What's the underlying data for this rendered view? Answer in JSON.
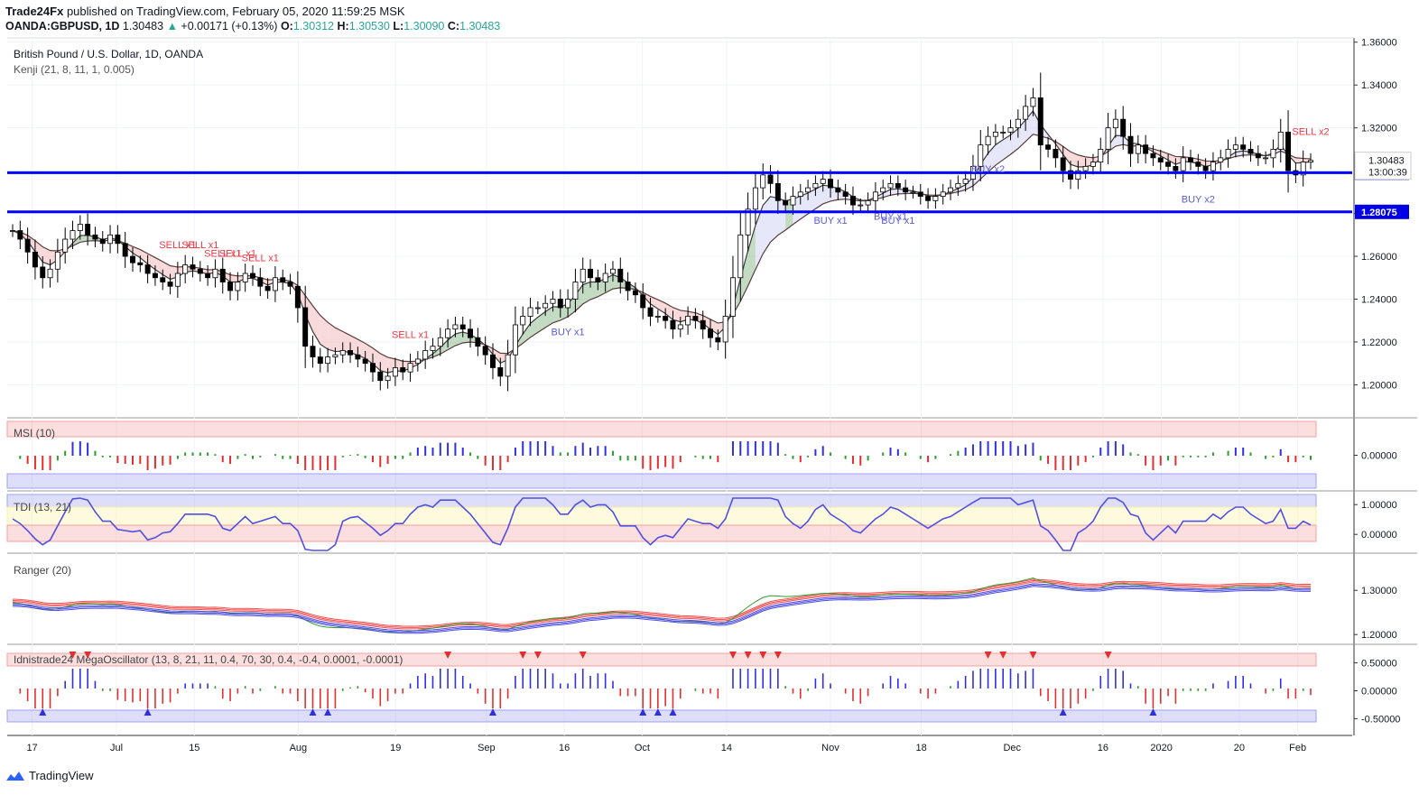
{
  "header": {
    "publisher": "Trade24Fx",
    "published_text": "published on TradingView.com, February 05, 2020 11:59:25 MSK",
    "symbol": "OANDA:GBPUSD, 1D",
    "last": "1.30483",
    "change": "+0.00171 (+0.13%)",
    "o_label": "O:",
    "o": "1.30312",
    "h_label": "H:",
    "h": "1.30530",
    "l_label": "L:",
    "l": "1.30090",
    "c_label": "C:",
    "c": "1.30483"
  },
  "panes": {
    "main": {
      "title": "British Pound / U.S. Dollar, 1D, OANDA",
      "indicator": "Kenji (21, 8, 11, 1, 0.005)"
    },
    "msi": {
      "title": "MSI (10)"
    },
    "tdi": {
      "title": "TDI (13, 21)"
    },
    "ranger": {
      "title": "Ranger (20)"
    },
    "mega": {
      "title": "Idnistrade24 MegaOscillator (13, 8, 21, 11, 0.4, 70, 30, 0.4, -0.4, 0.0001, -0.0001)"
    }
  },
  "footer": {
    "brand": "TradingView"
  },
  "colors": {
    "bull": "#ffffff",
    "bear": "#000000",
    "level": "#0000ff",
    "sell": "#f23645",
    "buy": "#5b5bd6",
    "green_band": "#7bb07b",
    "red_band": "#f4b6b6",
    "blue_band": "#c9c9f4"
  },
  "chart_data": {
    "type": "candlestick",
    "x_ticks": [
      "17",
      "Jul",
      "15",
      "Aug",
      "19",
      "Sep",
      "16",
      "Oct",
      "14",
      "Nov",
      "18",
      "Dec",
      "16",
      "2020",
      "20",
      "Feb"
    ],
    "price_axis": {
      "range": [
        1.185,
        1.362
      ],
      "ticks": [
        "1.36000",
        "1.34000",
        "1.32000",
        "1.30000",
        "1.28000",
        "1.26000",
        "1.24000",
        "1.22000",
        "1.20000"
      ]
    },
    "price_labels": {
      "current": "1.30483",
      "countdown": "13:00:39",
      "level1": "1.29904",
      "level2": "1.28075"
    },
    "horizontal_levels": [
      1.29904,
      1.28075
    ],
    "closes": [
      1.272,
      1.268,
      1.262,
      1.255,
      1.25,
      1.254,
      1.262,
      1.268,
      1.272,
      1.275,
      1.27,
      1.268,
      1.266,
      1.27,
      1.266,
      1.26,
      1.257,
      1.256,
      1.252,
      1.25,
      1.248,
      1.246,
      1.252,
      1.256,
      1.254,
      1.252,
      1.25,
      1.254,
      1.248,
      1.244,
      1.248,
      1.252,
      1.25,
      1.246,
      1.244,
      1.25,
      1.248,
      1.246,
      1.236,
      1.218,
      1.213,
      1.21,
      1.213,
      1.214,
      1.216,
      1.214,
      1.212,
      1.21,
      1.206,
      1.202,
      1.204,
      1.208,
      1.206,
      1.21,
      1.212,
      1.216,
      1.218,
      1.222,
      1.226,
      1.228,
      1.226,
      1.222,
      1.218,
      1.214,
      1.208,
      1.204,
      1.214,
      1.228,
      1.232,
      1.236,
      1.236,
      1.238,
      1.24,
      1.236,
      1.24,
      1.248,
      1.254,
      1.25,
      1.248,
      1.252,
      1.254,
      1.248,
      1.244,
      1.242,
      1.236,
      1.232,
      1.232,
      1.23,
      1.226,
      1.228,
      1.232,
      1.23,
      1.226,
      1.222,
      1.22,
      1.232,
      1.25,
      1.27,
      1.282,
      1.292,
      1.298,
      1.294,
      1.286,
      1.284,
      1.288,
      1.29,
      1.292,
      1.294,
      1.296,
      1.292,
      1.29,
      1.288,
      1.284,
      1.284,
      1.286,
      1.29,
      1.292,
      1.294,
      1.292,
      1.29,
      1.29,
      1.288,
      1.286,
      1.288,
      1.29,
      1.292,
      1.294,
      1.296,
      1.302,
      1.312,
      1.316,
      1.318,
      1.318,
      1.32,
      1.324,
      1.33,
      1.334,
      1.312,
      1.31,
      1.306,
      1.3,
      1.296,
      1.3,
      1.302,
      1.304,
      1.31,
      1.32,
      1.324,
      1.316,
      1.308,
      1.312,
      1.308,
      1.306,
      1.304,
      1.302,
      1.3,
      1.306,
      1.304,
      1.302,
      1.3,
      1.304,
      1.306,
      1.31,
      1.312,
      1.31,
      1.308,
      1.306,
      1.306,
      1.31,
      1.318,
      1.3,
      1.298,
      1.304,
      1.3048
    ],
    "annotations": [
      "SELL x1",
      "SELL x1",
      "SELL x1",
      "SELL x1",
      "SELL x1",
      "SELL x1",
      "BUY x1",
      "BUY x1",
      "BUY x1",
      "BUY x1",
      "BUY x2",
      "SELL x2",
      "BUY x2"
    ],
    "oscillators": {
      "msi": {
        "ticks": [
          "0.00000"
        ],
        "range": [
          -1,
          1
        ]
      },
      "tdi": {
        "ticks": [
          "1.00000",
          "0.00000"
        ],
        "range": [
          -0.6,
          1.4
        ]
      },
      "ranger": {
        "ticks": [
          "1.30000",
          "1.20000"
        ],
        "range": [
          1.18,
          1.38
        ]
      },
      "mega": {
        "ticks": [
          "0.50000",
          "0.00000",
          "-0.50000"
        ],
        "range": [
          -0.8,
          0.8
        ]
      }
    }
  }
}
